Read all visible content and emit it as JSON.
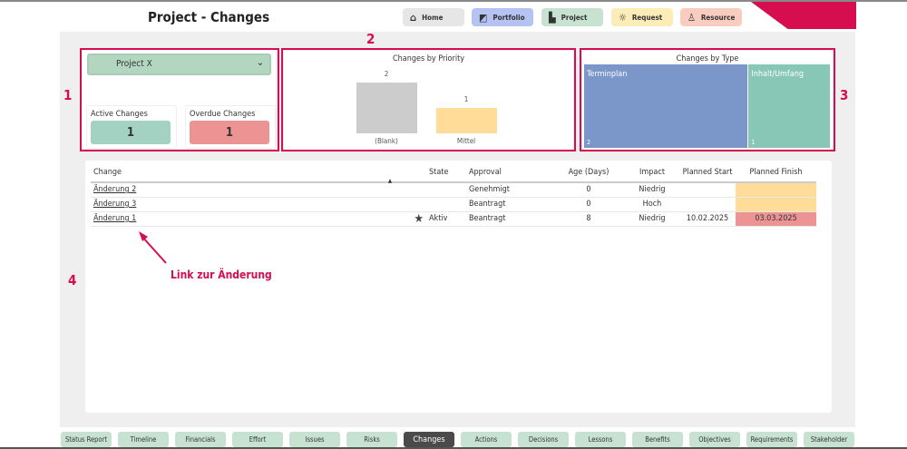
{
  "header": {
    "title": "Project - Changes"
  },
  "nav": [
    {
      "label": "Home",
      "icon": "home-icon",
      "color": "#e6e6e6"
    },
    {
      "label": "Portfolio",
      "icon": "portfolio-icon",
      "color": "#b4c3f2"
    },
    {
      "label": "Project",
      "icon": "project-icon",
      "color": "#c7e2d1"
    },
    {
      "label": "Request",
      "icon": "lightbulb-icon",
      "color": "#fbecb8"
    },
    {
      "label": "Resource",
      "icon": "people-icon",
      "color": "#f8cdbf"
    }
  ],
  "annotations": {
    "n1": "1",
    "n2": "2",
    "n3": "3",
    "n4": "4",
    "link_note": "Link zur Änderung",
    "accent": "#d60d4f"
  },
  "filter": {
    "project": "Project X"
  },
  "kpis": {
    "active_label": "Active Changes",
    "active_value": "1",
    "overdue_label": "Overdue Changes",
    "overdue_value": "1"
  },
  "chart_data": [
    {
      "type": "bar",
      "title": "Changes by Priority",
      "categories": [
        "(Blank)",
        "Mittel"
      ],
      "values": [
        2,
        1
      ],
      "colors": [
        "#cccccc",
        "#ffdd99"
      ]
    },
    {
      "type": "treemap",
      "title": "Changes by Type",
      "categories": [
        "Terminplan",
        "Inhalt/Umfang"
      ],
      "values": [
        2,
        1
      ],
      "colors": [
        "#7b97ca",
        "#88c7b5"
      ]
    }
  ],
  "table": {
    "headers": [
      "Change",
      "",
      "State",
      "Approval",
      "Age (Days)",
      "Impact",
      "Planned Start",
      "Planned Finish"
    ],
    "rows": [
      {
        "change": "Änderung 2",
        "star": false,
        "state": "",
        "approval": "Genehmigt",
        "age": "0",
        "impact": "Niedrig",
        "start": "",
        "finish": "",
        "finish_color": "#ffdd99"
      },
      {
        "change": "Änderung 3",
        "star": false,
        "state": "",
        "approval": "Beantragt",
        "age": "0",
        "impact": "Hoch",
        "start": "",
        "finish": "",
        "finish_color": "#ffdd99"
      },
      {
        "change": "Änderung 1",
        "star": true,
        "state": "Aktiv",
        "approval": "Beantragt",
        "age": "8",
        "impact": "Niedrig",
        "start": "10.02.2025",
        "finish": "03.03.2025",
        "finish_color": "#ec9494"
      }
    ]
  },
  "tabs": [
    "Status Report",
    "Timeline",
    "Financials",
    "Effort",
    "Issues",
    "Risks",
    "Changes",
    "Actions",
    "Decisions",
    "Lessons",
    "Benefits",
    "Objectives",
    "Requirements",
    "Stakeholder"
  ],
  "active_tab": "Changes"
}
